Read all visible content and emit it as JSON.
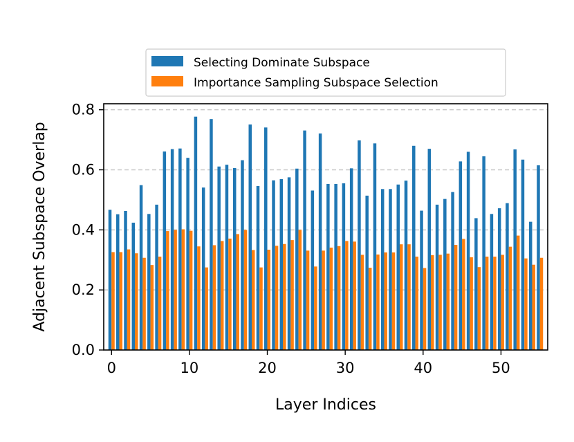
{
  "chart_data": {
    "type": "bar",
    "title": "",
    "xlabel": "Layer Indices",
    "ylabel": "Adjacent Subspace Overlap",
    "xlim": [
      -1,
      56
    ],
    "ylim": [
      0,
      0.82
    ],
    "xticks": [
      0,
      10,
      20,
      30,
      40,
      50
    ],
    "yticks": [
      0.0,
      0.2,
      0.4,
      0.6,
      0.8
    ],
    "xtick_labels": [
      "0",
      "10",
      "20",
      "30",
      "40",
      "50"
    ],
    "ytick_labels": [
      "0.0",
      "0.2",
      "0.4",
      "0.6",
      "0.8"
    ],
    "grid": "y-dashed",
    "legend_position": "top-center",
    "x": [
      0,
      1,
      2,
      3,
      4,
      5,
      6,
      7,
      8,
      9,
      10,
      11,
      12,
      13,
      14,
      15,
      16,
      17,
      18,
      19,
      20,
      21,
      22,
      23,
      24,
      25,
      26,
      27,
      28,
      29,
      30,
      31,
      32,
      33,
      34,
      35,
      36,
      37,
      38,
      39,
      40,
      41,
      42,
      43,
      44,
      45,
      46,
      47,
      48,
      49,
      50,
      51,
      52,
      53,
      54,
      55
    ],
    "series": [
      {
        "name": "Selecting Dominate Subspace",
        "color": "#1f77b4",
        "values": [
          0.467,
          0.452,
          0.463,
          0.424,
          0.549,
          0.453,
          0.484,
          0.661,
          0.669,
          0.671,
          0.64,
          0.777,
          0.541,
          0.769,
          0.611,
          0.617,
          0.606,
          0.632,
          0.751,
          0.546,
          0.741,
          0.565,
          0.569,
          0.575,
          0.604,
          0.731,
          0.531,
          0.721,
          0.553,
          0.553,
          0.555,
          0.605,
          0.698,
          0.514,
          0.688,
          0.536,
          0.536,
          0.551,
          0.564,
          0.68,
          0.464,
          0.67,
          0.484,
          0.503,
          0.526,
          0.628,
          0.66,
          0.439,
          0.645,
          0.453,
          0.472,
          0.489,
          0.668,
          0.634,
          0.427,
          0.615
        ]
      },
      {
        "name": "Importance Sampling Subspace Selection",
        "color": "#ff7f0e",
        "values": [
          0.326,
          0.326,
          0.335,
          0.322,
          0.307,
          0.283,
          0.311,
          0.396,
          0.4,
          0.402,
          0.397,
          0.345,
          0.275,
          0.349,
          0.363,
          0.371,
          0.386,
          0.4,
          0.333,
          0.275,
          0.334,
          0.347,
          0.353,
          0.366,
          0.4,
          0.331,
          0.278,
          0.331,
          0.341,
          0.346,
          0.363,
          0.361,
          0.317,
          0.274,
          0.318,
          0.325,
          0.325,
          0.352,
          0.352,
          0.311,
          0.273,
          0.316,
          0.317,
          0.321,
          0.35,
          0.37,
          0.309,
          0.276,
          0.311,
          0.311,
          0.317,
          0.344,
          0.381,
          0.305,
          0.284,
          0.307
        ]
      }
    ]
  }
}
